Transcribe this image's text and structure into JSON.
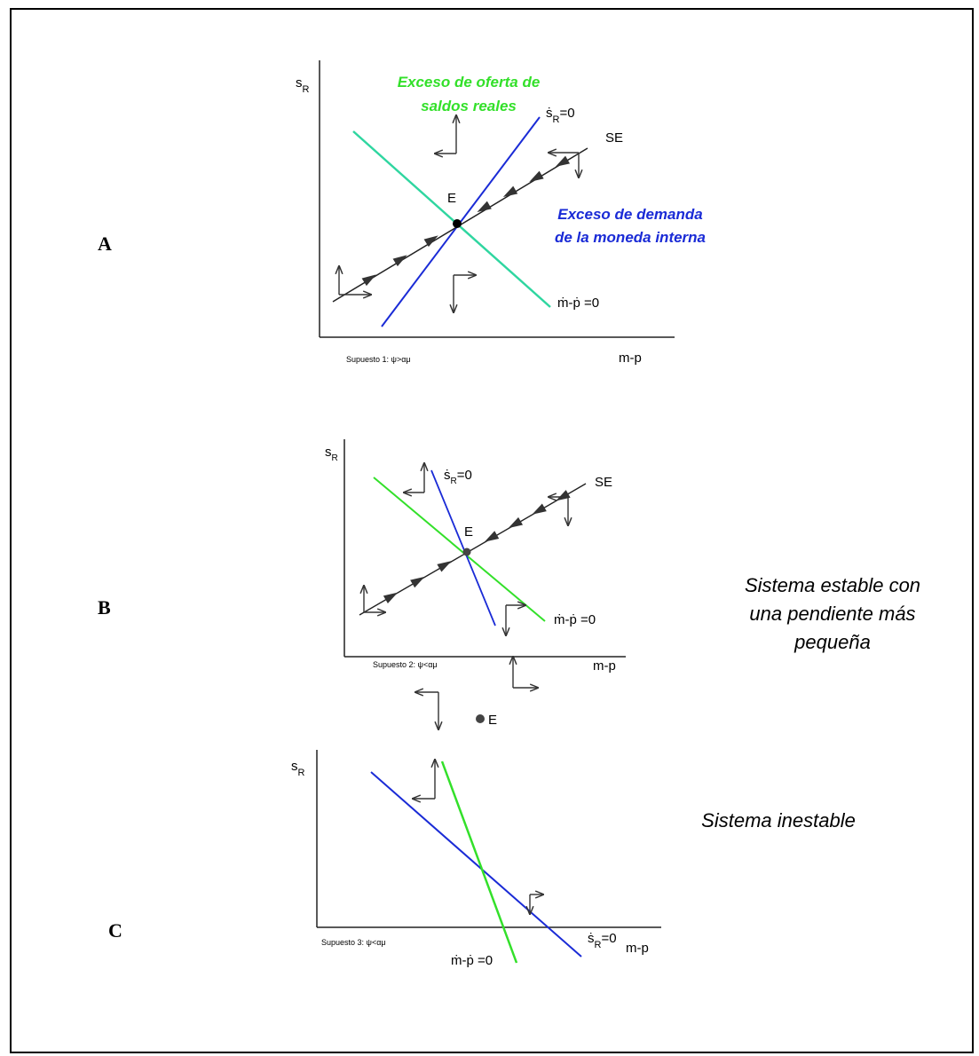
{
  "panels": [
    {
      "label": "A",
      "y_axis": {
        "symbol": "s",
        "subscript": "R"
      },
      "x_axis": "m-p",
      "assumption": "Supuesto 1: ψ>αμ",
      "equilibrium": "E",
      "saddle_path": "SE",
      "s_locus": {
        "symbol": "ṡ",
        "subscript": "R",
        "rest": "=0"
      },
      "m_locus": "ṁ-ṗ =0",
      "annotations": [
        "Exceso de oferta de",
        "saldos reales",
        "Exceso de demanda",
        "de la moneda interna"
      ]
    },
    {
      "label": "B",
      "y_axis": {
        "symbol": "s",
        "subscript": "R"
      },
      "x_axis": "m-p",
      "assumption": "Supuesto 2: ψ<αμ",
      "equilibrium": "E",
      "saddle_path": "SE",
      "s_locus": {
        "symbol": "ṡ",
        "subscript": "R",
        "rest": "=0"
      },
      "m_locus": "ṁ-ṗ =0",
      "caption": [
        "Sistema estable con",
        "una pendiente más",
        "pequeña"
      ]
    },
    {
      "label": "C",
      "y_axis": {
        "symbol": "s",
        "subscript": "R"
      },
      "x_axis": "m-p",
      "assumption": "Supuesto 3: ψ<αμ",
      "equilibrium": "E",
      "s_locus": {
        "symbol": "ṡ",
        "subscript": "R",
        "rest": "=0"
      },
      "m_locus": "ṁ-ṗ =0",
      "caption": [
        "Sistema inestable"
      ]
    }
  ]
}
